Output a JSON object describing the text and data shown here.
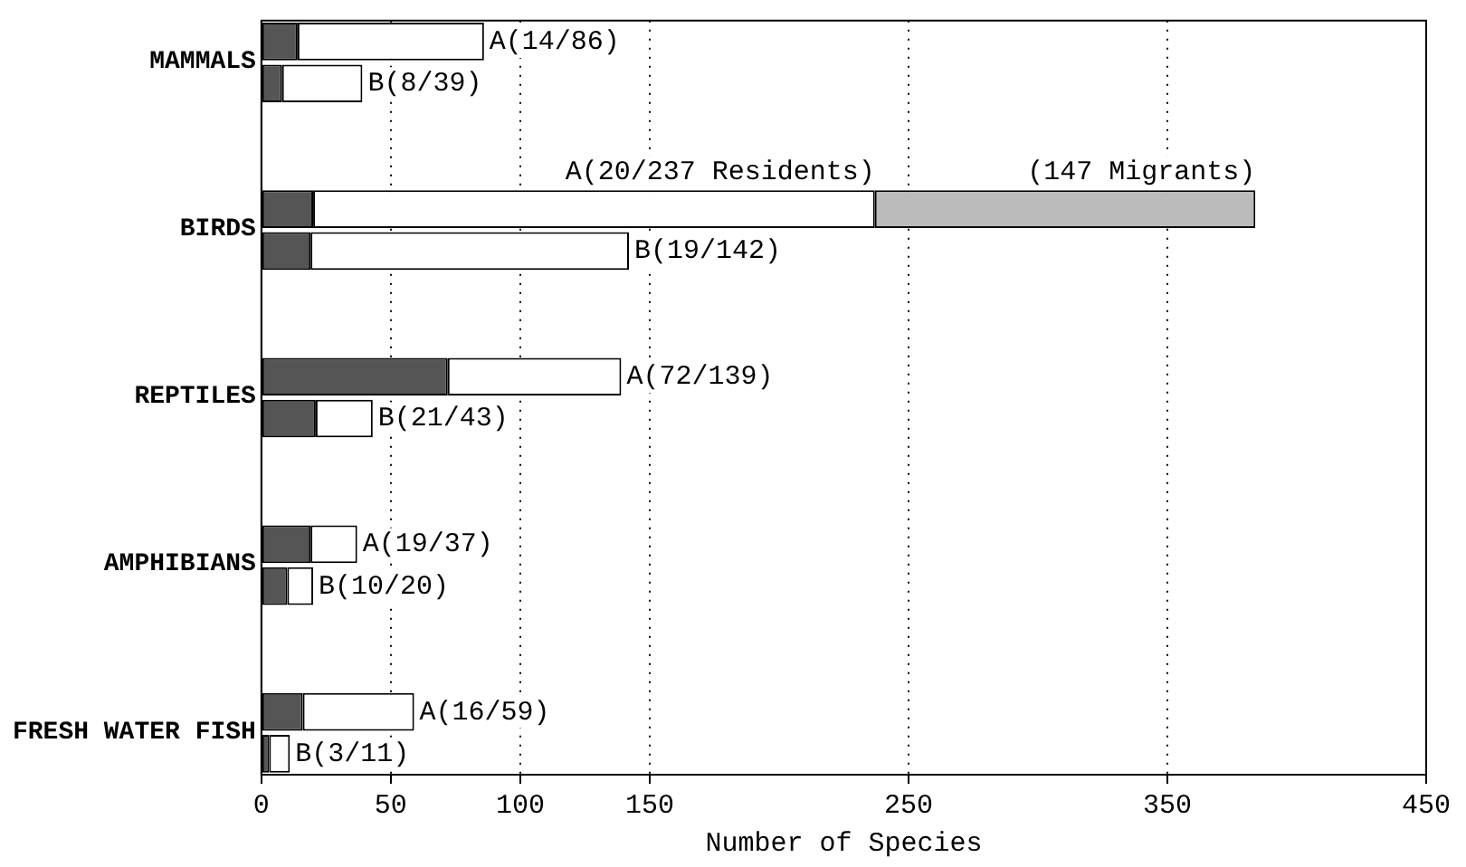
{
  "chart_data": {
    "type": "bar",
    "orientation": "horizontal",
    "stacked": true,
    "categories": [
      "MAMMALS",
      null,
      null,
      null,
      "BIRDS",
      null,
      null,
      null,
      "REPTILES",
      null,
      null,
      null,
      "AMPHIBIANS",
      null,
      null,
      null,
      "FRESH WATER FISH",
      null
    ],
    "series": [
      {
        "color": "#555555",
        "values": [
          14,
          8,
          null,
          null,
          20,
          19,
          null,
          null,
          72,
          21,
          null,
          null,
          19,
          10,
          null,
          null,
          16,
          3
        ]
      },
      {
        "color": "#ffffff",
        "values": [
          72,
          31,
          null,
          null,
          217,
          123,
          null,
          null,
          67,
          22,
          null,
          null,
          18,
          10,
          null,
          null,
          43,
          8
        ],
        "value_labels": [
          "A(14/86)",
          "B(8/39)",
          null,
          null,
          "A(20/237 Residents)",
          "B(19/142)",
          null,
          null,
          "A(72/139)",
          "B(21/43)",
          null,
          null,
          "A(19/37)",
          "B(10/20)",
          null,
          null,
          "A(16/59)",
          "B(3/11)"
        ]
      },
      {
        "color": "#bbbbbb",
        "values": [
          null,
          null,
          null,
          null,
          147,
          null,
          null,
          null,
          null,
          null,
          null,
          null,
          null,
          null,
          null,
          null,
          null,
          null
        ],
        "value_labels": [
          null,
          null,
          null,
          null,
          "(147 Migrants)",
          null,
          null,
          null,
          null,
          null,
          null,
          null,
          null,
          null,
          null,
          null,
          null,
          null
        ]
      }
    ],
    "xlabel": "Number of Species",
    "xlim": [
      0,
      450
    ],
    "xticks": [
      0,
      50,
      100,
      150,
      250,
      350,
      450
    ],
    "grid": "x",
    "legend": false
  }
}
